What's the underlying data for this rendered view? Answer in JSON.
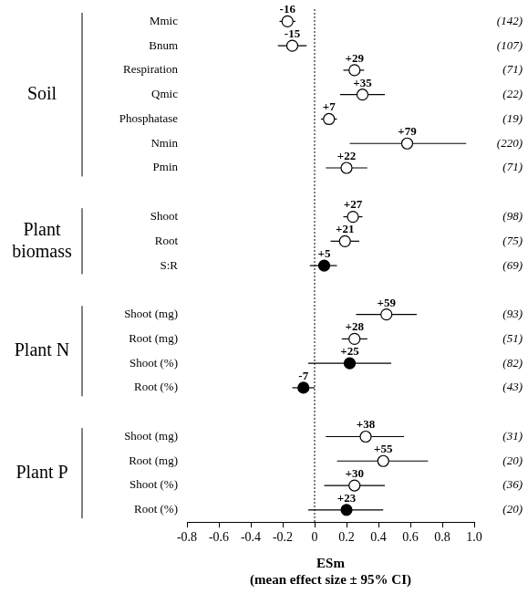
{
  "chart_data": {
    "type": "scatter",
    "orientation": "horizontal",
    "categories": [
      "Mmic",
      "Bnum",
      "Respiration",
      "Qmic",
      "Phosphatase",
      "Nmin",
      "Pmin",
      null,
      "Shoot",
      "Root",
      "S:R",
      null,
      "Shoot (mg)",
      "Root (mg)",
      "Shoot (%)",
      "Root (%)",
      null,
      "Shoot (mg)",
      "Root (mg)",
      "Shoot (%)",
      "Root (%)"
    ],
    "values": [
      -0.17,
      -0.14,
      0.25,
      0.3,
      0.09,
      0.58,
      0.2,
      null,
      0.24,
      0.19,
      0.06,
      null,
      0.45,
      0.25,
      0.22,
      -0.07,
      null,
      0.32,
      0.43,
      0.25,
      0.2
    ],
    "ci_lower": [
      -0.22,
      -0.23,
      0.18,
      0.16,
      0.04,
      0.22,
      0.07,
      null,
      0.18,
      0.1,
      -0.03,
      null,
      0.26,
      0.17,
      -0.04,
      -0.14,
      null,
      0.07,
      0.14,
      0.06,
      -0.04
    ],
    "ci_upper": [
      -0.12,
      -0.05,
      0.31,
      0.44,
      0.14,
      0.95,
      0.33,
      null,
      0.3,
      0.28,
      0.14,
      null,
      0.64,
      0.33,
      0.48,
      0.0,
      null,
      0.56,
      0.71,
      0.44,
      0.43
    ],
    "percent_labels": [
      "-16",
      "-15",
      "+29",
      "+35",
      "+7",
      "+79",
      "+22",
      null,
      "+27",
      "+21",
      "+5",
      null,
      "+59",
      "+28",
      "+25",
      "-7",
      null,
      "+38",
      "+55",
      "+30",
      "+23"
    ],
    "n_labels": [
      "(142)",
      "(107)",
      "(71)",
      "(22)",
      "(19)",
      "(220)",
      "(71)",
      null,
      "(98)",
      "(75)",
      "(69)",
      null,
      "(93)",
      "(51)",
      "(82)",
      "(43)",
      null,
      "(31)",
      "(20)",
      "(36)",
      "(20)"
    ],
    "colors": [
      "#ffffff",
      "#ffffff",
      "#ffffff",
      "#ffffff",
      "#ffffff",
      "#ffffff",
      "#ffffff",
      null,
      "#ffffff",
      "#ffffff",
      "#000000",
      null,
      "#ffffff",
      "#ffffff",
      "#000000",
      "#000000",
      null,
      "#ffffff",
      "#ffffff",
      "#ffffff",
      "#000000"
    ],
    "groups": [
      {
        "label": [
          "Soil"
        ],
        "start": 0,
        "end": 6
      },
      {
        "label": [
          "Plant",
          "biomass"
        ],
        "start": 8,
        "end": 10
      },
      {
        "label": [
          "Plant N"
        ],
        "start": 12,
        "end": 15
      },
      {
        "label": [
          "Plant P"
        ],
        "start": 17,
        "end": 20
      }
    ],
    "xlabel": [
      "ESm",
      "(mean effect size ± 95% CI)"
    ],
    "xlim": [
      -0.8,
      1.0
    ],
    "xticks": [
      -0.8,
      -0.6,
      -0.4,
      -0.2,
      0,
      0.2,
      0.4,
      0.6,
      0.8,
      {
        "value": 1.0,
        "label": "1.0"
      }
    ],
    "reference_x": 0,
    "grid": false,
    "marker": "circle",
    "legend": "none"
  }
}
